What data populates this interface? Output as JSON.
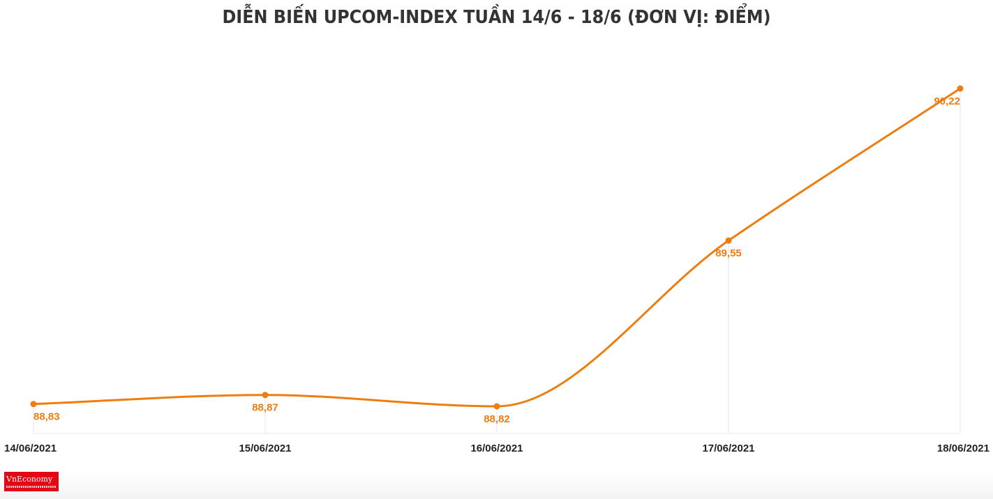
{
  "chart_data": {
    "type": "line",
    "title": "DIỄN BIẾN UPCOM-INDEX TUẦN 14/6 - 18/6 (ĐƠN VỊ: ĐIỂM)",
    "categories": [
      "14/06/2021",
      "15/06/2021",
      "16/06/2021",
      "17/06/2021",
      "18/06/2021"
    ],
    "values": [
      88.83,
      88.87,
      88.82,
      89.55,
      90.22
    ],
    "data_labels": [
      "88,83",
      "88,87",
      "88,82",
      "89,55",
      "90,22"
    ],
    "xlabel": "",
    "ylabel": "",
    "grid": false,
    "legend": "none",
    "line_color": "#ee7d10",
    "smooth": true
  },
  "branding": {
    "logo_text": "VnEconomy",
    "logo_color": "#e30613"
  }
}
